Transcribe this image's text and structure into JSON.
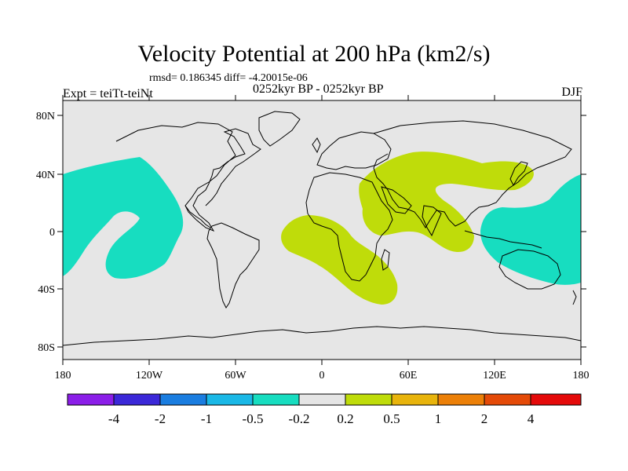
{
  "title": "Velocity Potential at 200 hPa (km2/s)",
  "stats_line": "rmsd= 0.186345 diff= -4.20015e-06",
  "expt_label": "Expt = teiTt-teiNt",
  "period_label": "0252kyr BP - 0252kyr BP",
  "season_label": "DJF",
  "axes": {
    "lon_ticks": [
      "180",
      "120W",
      "60W",
      "0",
      "60E",
      "120E",
      "180"
    ],
    "lat_ticks": [
      "80N",
      "40N",
      "0",
      "40S",
      "80S"
    ]
  },
  "colorbar": {
    "colors": [
      "#8b1ee8",
      "#3b28d8",
      "#1a7de0",
      "#1ab8e6",
      "#17ddc0",
      "#e5e5e5",
      "#bfdc0a",
      "#e8b40c",
      "#ec8008",
      "#e44a08",
      "#e40a0a"
    ],
    "labels": [
      "-4",
      "-2",
      "-1",
      "-0.5",
      "-0.2",
      "0.2",
      "0.5",
      "1",
      "2",
      "4"
    ]
  },
  "legend_colors": {
    "background": "#e6e6e6",
    "negative_region": "#17ddc0",
    "positive_region": "#bfdc0a",
    "coast": "#000000"
  }
}
